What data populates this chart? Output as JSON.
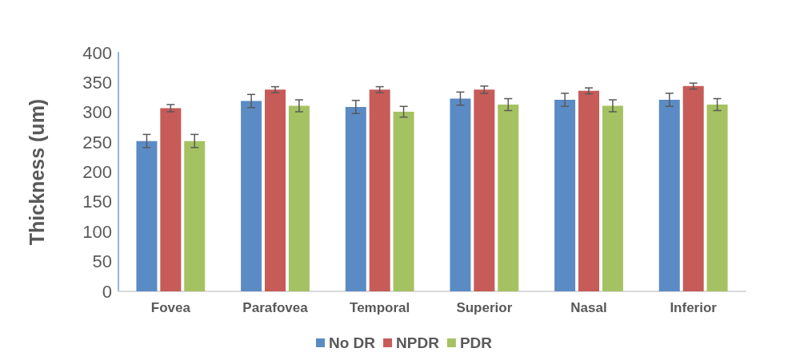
{
  "chart_data": {
    "type": "bar",
    "ylabel": "Thickness (um)",
    "categories": [
      "Fovea",
      "Parafovea",
      "Temporal",
      "Superior",
      "Nasal",
      "Inferior"
    ],
    "series": [
      {
        "name": "No DR",
        "color": "#5b8bc4",
        "values": [
          252,
          319,
          309,
          323,
          321,
          321
        ],
        "errors": [
          11,
          11,
          11,
          11,
          11,
          11
        ]
      },
      {
        "name": "NPDR",
        "color": "#c65b58",
        "values": [
          307,
          338,
          338,
          338,
          336,
          344
        ],
        "errors": [
          6,
          5,
          5,
          6,
          5,
          5
        ]
      },
      {
        "name": "PDR",
        "color": "#a5c262",
        "values": [
          252,
          311,
          301,
          313,
          311,
          313
        ],
        "errors": [
          11,
          10,
          9,
          10,
          10,
          10
        ]
      }
    ],
    "ylim": [
      0,
      400
    ],
    "yticks": [
      0,
      50,
      100,
      150,
      200,
      250,
      300,
      350,
      400
    ],
    "grid": false,
    "legend": "bottom"
  }
}
